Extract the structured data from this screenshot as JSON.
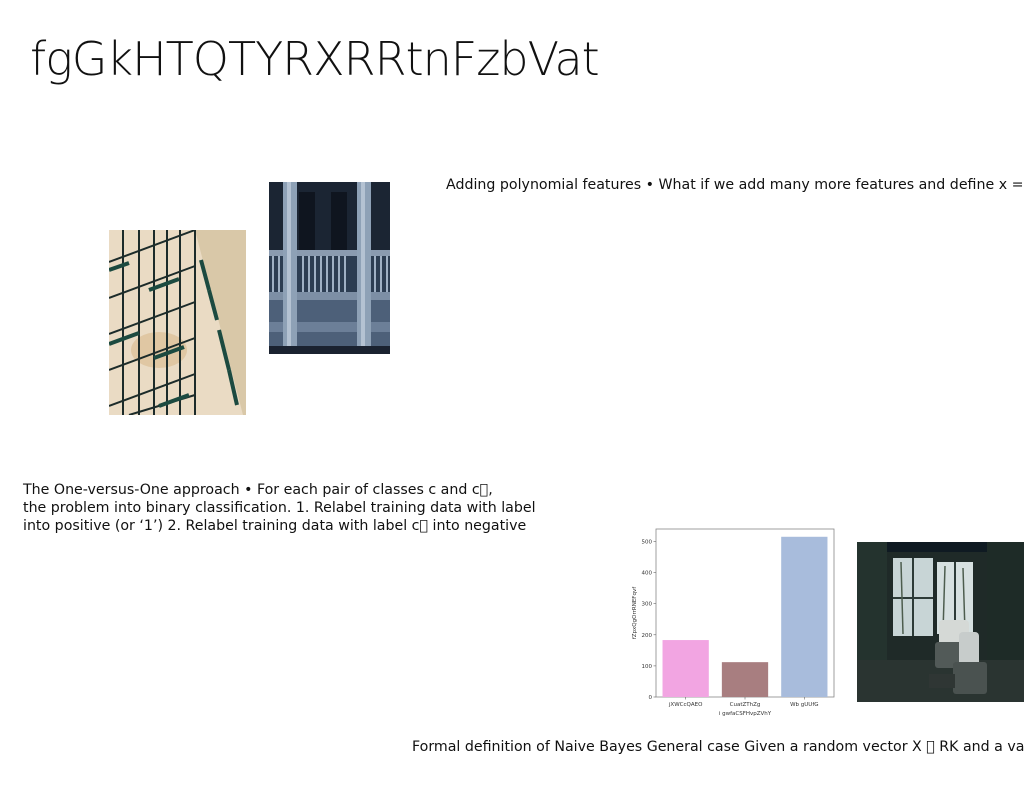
{
  "slide": {
    "title": "fgGkHTQTYRXRRtnFzbVat"
  },
  "text_blocks": [
    "Adding polynomial features • What if we add many more features and define x =",
    "The One-versus-One approach • For each pair of classes c and c\u0000,\nthe problem into binary classification. 1. Relabel training data with label\ninto positive (or ‘1’) 2. Relabel training data with label c\u0000 into negative",
    "Formal definition of Naive Bayes General case Given a random vector X \u0000 RK and a\nvariable Y \u0000 [C], the Naive Bayes model defines the joint distribution P(X = x, Y = c) ="
  ],
  "images": [
    {
      "icon": "building-facade-photo"
    },
    {
      "icon": "balcony-columns-photo"
    },
    {
      "icon": "sunroom-interior-photo"
    }
  ],
  "chart_data": {
    "type": "bar",
    "categories": [
      "jXWCcQAEO",
      "CuatZThZg",
      "Wb gUUfG"
    ],
    "values": [
      183,
      112,
      515
    ],
    "colors": [
      "#f2a5e2",
      "#a87e80",
      "#a8bcdc"
    ],
    "xlabel": "i gwfaCSFHvpZVhY",
    "ylabel": "fZpxQgOrrRNEFqvf",
    "ylim": [
      0,
      540
    ],
    "yticks": [
      0,
      100,
      200,
      300,
      400,
      500
    ],
    "grid": false
  }
}
